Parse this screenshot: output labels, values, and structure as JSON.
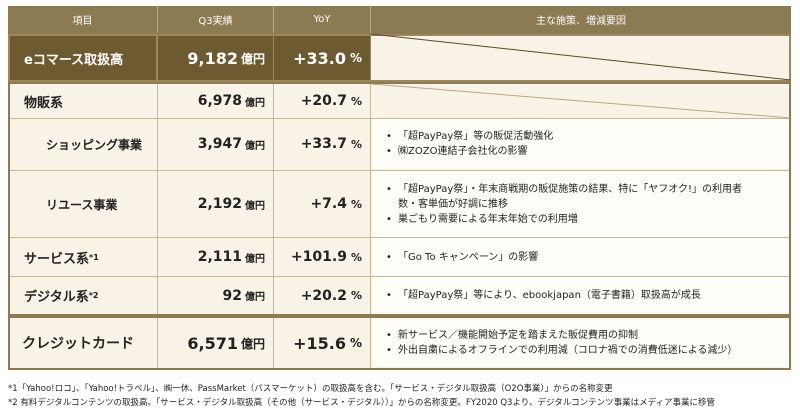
{
  "header": {
    "col_item": "項目",
    "col_q3": "Q3実績",
    "col_yoy": "YoY",
    "col_notes": "主な施策、増減要因"
  },
  "unit_oku": "億円",
  "pct": "%",
  "rows": {
    "ecommerce": {
      "label": "eコマース取扱高",
      "value": "9,182",
      "yoy": "+33.0"
    },
    "butsuhan": {
      "label": "物販系",
      "value": "6,978",
      "yoy": "+20.7"
    },
    "shopping": {
      "label": "ショッピング事業",
      "value": "3,947",
      "yoy": "+33.7",
      "notes": [
        "「超PayPay祭」等の販促活動強化",
        "㈱ZOZO連結子会社化の影響"
      ]
    },
    "reuse": {
      "label": "リユース事業",
      "value": "2,192",
      "yoy": "+7.4",
      "notes": [
        "「超PayPay祭」・年末商戦期の販促施策の結果、特に「ヤフオク!」の利用者",
        "数・客単価が好調に推移",
        "巣ごもり需要による年末年始での利用増"
      ]
    },
    "service": {
      "label": "サービス系",
      "sup": "*1",
      "value": "2,111",
      "yoy": "+101.9",
      "notes": [
        "「Go To キャンペーン」の影響"
      ]
    },
    "digital": {
      "label": "デジタル系",
      "sup": "*2",
      "value": "92",
      "yoy": "+20.2",
      "notes": [
        "「超PayPay祭」等により、ebookjapan（電子書籍）取扱高が成長"
      ]
    },
    "credit": {
      "label": "クレジットカード",
      "value": "6,571",
      "yoy": "+15.6",
      "notes": [
        "新サービス／機能開始予定を踏まえた販促費用の抑制",
        "外出自粛によるオフラインでの利用減（コロナ禍での消費低迷による減少）"
      ]
    }
  },
  "footnotes": [
    "*1「Yahoo!ロコ」、「Yahoo!トラベル」、㈱一休、PassMarket（パスマーケット）の取扱高を含む。「サービス・デジタル取扱高（O2O事業）」からの名称変更",
    "*2 有料デジタルコンテンツの取扱高。「サービス・デジタル取扱高（その他（サービス・デジタル））」からの名称変更。FY2020 Q3より、デジタルコンテンツ事業はメディア事業に移管"
  ]
}
